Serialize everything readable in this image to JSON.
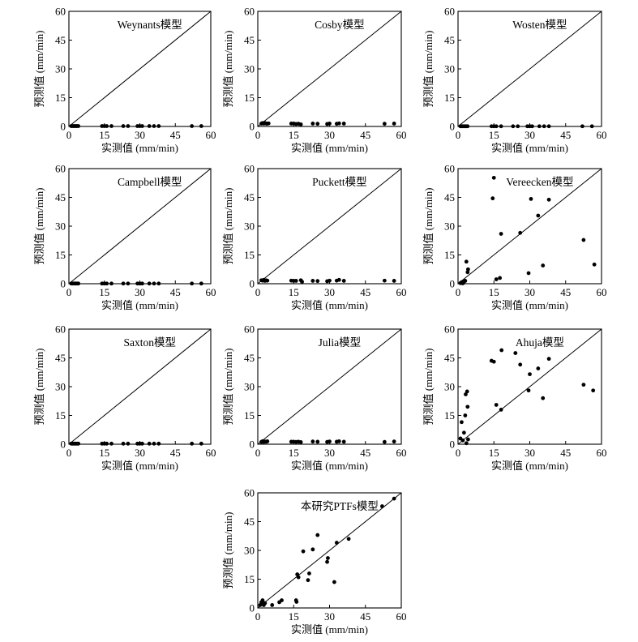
{
  "chart_data": [
    {
      "type": "scatter",
      "title": "Weynants模型",
      "xlabel": "实测值 (mm/min)",
      "ylabel": "预测值 (mm/min)",
      "xlim": [
        0,
        60
      ],
      "ylim": [
        0,
        60
      ],
      "xticks": [
        "0",
        "15",
        "30",
        "45",
        "60"
      ],
      "yticks": [
        "0",
        "15",
        "30",
        "45",
        "60"
      ],
      "reference_line": "1:1",
      "points": [
        [
          1,
          0.2
        ],
        [
          1.5,
          0.2
        ],
        [
          2,
          0.2
        ],
        [
          2.5,
          0.2
        ],
        [
          3,
          0.2
        ],
        [
          3.5,
          0.2
        ],
        [
          4,
          0.2
        ],
        [
          14,
          0.2
        ],
        [
          15,
          0.2
        ],
        [
          16,
          0.2
        ],
        [
          18,
          0.2
        ],
        [
          23,
          0.2
        ],
        [
          25,
          0.2
        ],
        [
          29,
          0.2
        ],
        [
          30,
          0.2
        ],
        [
          31,
          0.2
        ],
        [
          34,
          0.2
        ],
        [
          36,
          0.2
        ],
        [
          38,
          0.2
        ],
        [
          52,
          0.2
        ],
        [
          56,
          0.2
        ]
      ]
    },
    {
      "type": "scatter",
      "title": "Cosby模型",
      "xlabel": "实测值 (mm/min)",
      "ylabel": "预测值 (mm/min)",
      "xlim": [
        0,
        60
      ],
      "ylim": [
        0,
        60
      ],
      "xticks": [
        "0",
        "15",
        "30",
        "45",
        "60"
      ],
      "yticks": [
        "0",
        "15",
        "30",
        "45",
        "60"
      ],
      "reference_line": "1:1",
      "points": [
        [
          1.5,
          1.5
        ],
        [
          2,
          1.8
        ],
        [
          2.5,
          1.5
        ],
        [
          3,
          1.8
        ],
        [
          3.5,
          1.5
        ],
        [
          4,
          1.5
        ],
        [
          4.5,
          1.6
        ],
        [
          14,
          1.5
        ],
        [
          15,
          1.5
        ],
        [
          16,
          1.3
        ],
        [
          17,
          1.4
        ],
        [
          18,
          1.1
        ],
        [
          23,
          1.5
        ],
        [
          25,
          1.4
        ],
        [
          29,
          1.3
        ],
        [
          30,
          1.5
        ],
        [
          33,
          1.4
        ],
        [
          34,
          1.6
        ],
        [
          36,
          1.5
        ],
        [
          53,
          1.4
        ],
        [
          57,
          1.5
        ]
      ]
    },
    {
      "type": "scatter",
      "title": "Wosten模型",
      "xlabel": "实测值 (mm/min)",
      "ylabel": "预测值 (mm/min)",
      "xlim": [
        0,
        60
      ],
      "ylim": [
        0,
        60
      ],
      "xticks": [
        "0",
        "15",
        "30",
        "45",
        "60"
      ],
      "yticks": [
        "0",
        "15",
        "30",
        "45",
        "60"
      ],
      "reference_line": "1:1",
      "points": [
        [
          1,
          0.1
        ],
        [
          1.5,
          0.1
        ],
        [
          2,
          0.1
        ],
        [
          2.5,
          0.1
        ],
        [
          3,
          0.1
        ],
        [
          3.5,
          0.1
        ],
        [
          4,
          0.1
        ],
        [
          14,
          0.1
        ],
        [
          15,
          0.1
        ],
        [
          16,
          0.1
        ],
        [
          18,
          0.1
        ],
        [
          23,
          0.1
        ],
        [
          25,
          0.1
        ],
        [
          29,
          0.1
        ],
        [
          30,
          0.1
        ],
        [
          31,
          0.1
        ],
        [
          34,
          0.1
        ],
        [
          36,
          0.1
        ],
        [
          38,
          0.1
        ],
        [
          52,
          0.1
        ],
        [
          56,
          0.1
        ]
      ]
    },
    {
      "type": "scatter",
      "title": "Campbell模型",
      "xlabel": "实测值 (mm/min)",
      "ylabel": "预测值 (mm/min)",
      "xlim": [
        0,
        60
      ],
      "ylim": [
        0,
        60
      ],
      "xticks": [
        "0",
        "15",
        "30",
        "45",
        "60"
      ],
      "yticks": [
        "0",
        "15",
        "30",
        "45",
        "60"
      ],
      "reference_line": "1:1",
      "points": [
        [
          1,
          0.1
        ],
        [
          1.5,
          0.1
        ],
        [
          2,
          0.1
        ],
        [
          2.5,
          0.1
        ],
        [
          3,
          0.1
        ],
        [
          3.5,
          0.1
        ],
        [
          4,
          0.1
        ],
        [
          14,
          0.1
        ],
        [
          15,
          0.1
        ],
        [
          16,
          0.1
        ],
        [
          18,
          0.1
        ],
        [
          23,
          0.1
        ],
        [
          25,
          0.1
        ],
        [
          29,
          0.1
        ],
        [
          30,
          0.1
        ],
        [
          31,
          0.1
        ],
        [
          34,
          0.1
        ],
        [
          36,
          0.1
        ],
        [
          38,
          0.1
        ],
        [
          52,
          0.1
        ],
        [
          56,
          0.1
        ]
      ]
    },
    {
      "type": "scatter",
      "title": "Puckett模型",
      "xlabel": "实测值 (mm/min)",
      "ylabel": "预测值 (mm/min)",
      "xlim": [
        0,
        60
      ],
      "ylim": [
        0,
        60
      ],
      "xticks": [
        "0",
        "15",
        "30",
        "45",
        "60"
      ],
      "yticks": [
        "0",
        "15",
        "30",
        "45",
        "60"
      ],
      "reference_line": "1:1",
      "points": [
        [
          1.5,
          1.8
        ],
        [
          2,
          1.6
        ],
        [
          2.5,
          2
        ],
        [
          3,
          1.5
        ],
        [
          3.5,
          1.8
        ],
        [
          4,
          1.6
        ],
        [
          14,
          1.6
        ],
        [
          15,
          1.5
        ],
        [
          16,
          1.5
        ],
        [
          18,
          1.8
        ],
        [
          18.5,
          1.0
        ],
        [
          23,
          1.5
        ],
        [
          25,
          1.4
        ],
        [
          29,
          1.3
        ],
        [
          30,
          1.6
        ],
        [
          33,
          1.6
        ],
        [
          34,
          2
        ],
        [
          36,
          1.5
        ],
        [
          53,
          1.6
        ],
        [
          57,
          1.5
        ]
      ]
    },
    {
      "type": "scatter",
      "title": "Vereecken模型",
      "xlabel": "实测值 (mm/min)",
      "ylabel": "预测值 (mm/min)",
      "xlim": [
        0,
        60
      ],
      "ylim": [
        0,
        60
      ],
      "xticks": [
        "0",
        "15",
        "30",
        "45",
        "60"
      ],
      "yticks": [
        "0",
        "15",
        "30",
        "45",
        "60"
      ],
      "reference_line": "1:1",
      "points": [
        [
          1,
          0.3
        ],
        [
          1.5,
          0.8
        ],
        [
          2,
          0.2
        ],
        [
          2.5,
          1
        ],
        [
          3,
          1.5
        ],
        [
          3.5,
          11.5
        ],
        [
          4,
          6
        ],
        [
          4.2,
          7.5
        ],
        [
          14.5,
          44.5
        ],
        [
          15,
          55.2
        ],
        [
          16,
          2.3
        ],
        [
          17.5,
          3
        ],
        [
          18,
          26
        ],
        [
          26,
          26.5
        ],
        [
          29.5,
          5.5
        ],
        [
          30.5,
          44.2
        ],
        [
          33.5,
          35.5
        ],
        [
          35.5,
          9.5
        ],
        [
          38,
          43.8
        ],
        [
          52.5,
          22.8
        ],
        [
          57,
          10
        ]
      ]
    },
    {
      "type": "scatter",
      "title": "Saxton模型",
      "xlabel": "实测值 (mm/min)",
      "ylabel": "预测值 (mm/min)",
      "xlim": [
        0,
        60
      ],
      "ylim": [
        0,
        60
      ],
      "xticks": [
        "0",
        "15",
        "30",
        "45",
        "60"
      ],
      "yticks": [
        "0",
        "15",
        "30",
        "45",
        "60"
      ],
      "reference_line": "1:1",
      "points": [
        [
          1,
          0.3
        ],
        [
          1.5,
          0.3
        ],
        [
          2,
          0.3
        ],
        [
          2.5,
          0.3
        ],
        [
          3,
          0.3
        ],
        [
          3.5,
          0.3
        ],
        [
          4,
          0.3
        ],
        [
          14,
          0.3
        ],
        [
          15,
          0.3
        ],
        [
          16,
          0.3
        ],
        [
          18,
          0.3
        ],
        [
          23,
          0.3
        ],
        [
          25,
          0.3
        ],
        [
          29,
          0.3
        ],
        [
          30,
          0.3
        ],
        [
          31,
          0.3
        ],
        [
          34,
          0.3
        ],
        [
          36,
          0.3
        ],
        [
          38,
          0.3
        ],
        [
          52,
          0.3
        ],
        [
          56,
          0.3
        ]
      ]
    },
    {
      "type": "scatter",
      "title": "Julia模型",
      "xlabel": "实测值 (mm/min)",
      "ylabel": "预测值 (mm/min)",
      "xlim": [
        0,
        60
      ],
      "ylim": [
        0,
        60
      ],
      "xticks": [
        "0",
        "15",
        "30",
        "45",
        "60"
      ],
      "yticks": [
        "0",
        "15",
        "30",
        "45",
        "60"
      ],
      "reference_line": "1:1",
      "points": [
        [
          1.5,
          1.2
        ],
        [
          2,
          1.5
        ],
        [
          2.5,
          1.2
        ],
        [
          3,
          1.4
        ],
        [
          3.5,
          1.3
        ],
        [
          4,
          1.5
        ],
        [
          14,
          1.3
        ],
        [
          15,
          1.3
        ],
        [
          16,
          1.2
        ],
        [
          17,
          1.3
        ],
        [
          18,
          1.1
        ],
        [
          23,
          1.4
        ],
        [
          25,
          1.3
        ],
        [
          29,
          1.2
        ],
        [
          30,
          1.4
        ],
        [
          33,
          1.3
        ],
        [
          34,
          1.5
        ],
        [
          36,
          1.3
        ],
        [
          53,
          1.2
        ],
        [
          57,
          1.4
        ]
      ]
    },
    {
      "type": "scatter",
      "title": "Ahuja模型",
      "xlabel": "实测值 (mm/min)",
      "ylabel": "预测值 (mm/min)",
      "xlim": [
        0,
        60
      ],
      "ylim": [
        0,
        60
      ],
      "xticks": [
        "0",
        "15",
        "30",
        "45",
        "60"
      ],
      "yticks": [
        "0",
        "15",
        "30",
        "45",
        "60"
      ],
      "reference_line": "1:1",
      "points": [
        [
          1,
          3
        ],
        [
          1.5,
          11.5
        ],
        [
          2,
          2
        ],
        [
          2.5,
          6
        ],
        [
          3,
          15
        ],
        [
          3.2,
          26
        ],
        [
          3.5,
          0.5
        ],
        [
          3.8,
          27.5
        ],
        [
          4,
          19.5
        ],
        [
          4.2,
          2.5
        ],
        [
          14,
          43.5
        ],
        [
          15,
          43
        ],
        [
          16,
          20.5
        ],
        [
          18,
          18
        ],
        [
          18.2,
          49
        ],
        [
          24,
          47.5
        ],
        [
          26,
          41.5
        ],
        [
          29.5,
          28
        ],
        [
          30,
          36.5
        ],
        [
          33.5,
          39.5
        ],
        [
          35.5,
          24
        ],
        [
          38,
          44.5
        ],
        [
          52.5,
          31
        ],
        [
          56.5,
          28
        ]
      ]
    },
    {
      "type": "scatter",
      "title": "本研究PTFs模型",
      "xlabel": "实测值 (mm/min)",
      "ylabel": "预测值 (mm/min)",
      "xlim": [
        0,
        60
      ],
      "ylim": [
        0,
        60
      ],
      "xticks": [
        "0",
        "15",
        "30",
        "45",
        "60"
      ],
      "yticks": [
        "0",
        "15",
        "30",
        "45",
        "60"
      ],
      "reference_line": "1:1",
      "points": [
        [
          1,
          1.5
        ],
        [
          1.5,
          3
        ],
        [
          2,
          4
        ],
        [
          2.5,
          1.5
        ],
        [
          3,
          2.5
        ],
        [
          6,
          1.5
        ],
        [
          9,
          3
        ],
        [
          10,
          4
        ],
        [
          16,
          4
        ],
        [
          16.2,
          3.2
        ],
        [
          16.5,
          17.5
        ],
        [
          17,
          16
        ],
        [
          19,
          29.5
        ],
        [
          21,
          14.5
        ],
        [
          21.5,
          18
        ],
        [
          23,
          30.5
        ],
        [
          25,
          38
        ],
        [
          29,
          24
        ],
        [
          29.3,
          26
        ],
        [
          32,
          13.5
        ],
        [
          33,
          34
        ],
        [
          38,
          36
        ],
        [
          52,
          53
        ],
        [
          57,
          57
        ]
      ]
    }
  ]
}
